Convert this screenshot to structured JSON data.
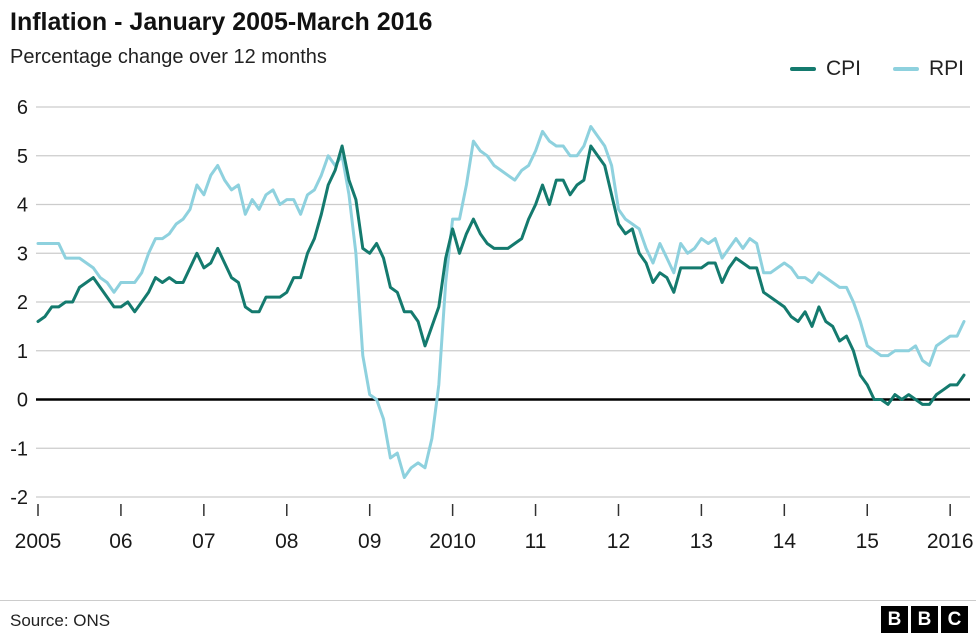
{
  "footer": {
    "source": "Source: ONS",
    "logo_letters": [
      "B",
      "B",
      "C"
    ]
  },
  "chart_data": {
    "type": "line",
    "title": "Inflation - January 2005-March 2016",
    "subtitle": "Percentage change over 12 months",
    "x_unit": "month",
    "x_range": [
      "2005-01",
      "2016-03"
    ],
    "x_tick_labels": [
      "2005",
      "06",
      "07",
      "08",
      "09",
      "2010",
      "11",
      "12",
      "13",
      "14",
      "15",
      "2016"
    ],
    "y_ticks": [
      6,
      5,
      4,
      3,
      2,
      1,
      0,
      -1,
      -2
    ],
    "ylim": [
      -2,
      6
    ],
    "grid": true,
    "legend_position": "top-right",
    "zero_line_color": "#000000",
    "grid_color": "#cccccc",
    "series": [
      {
        "name": "CPI",
        "color": "#147a6e",
        "values": [
          1.6,
          1.7,
          1.9,
          1.9,
          2.0,
          2.0,
          2.3,
          2.4,
          2.5,
          2.3,
          2.1,
          1.9,
          1.9,
          2.0,
          1.8,
          2.0,
          2.2,
          2.5,
          2.4,
          2.5,
          2.4,
          2.4,
          2.7,
          3.0,
          2.7,
          2.8,
          3.1,
          2.8,
          2.5,
          2.4,
          1.9,
          1.8,
          1.8,
          2.1,
          2.1,
          2.1,
          2.2,
          2.5,
          2.5,
          3.0,
          3.3,
          3.8,
          4.4,
          4.7,
          5.2,
          4.5,
          4.1,
          3.1,
          3.0,
          3.2,
          2.9,
          2.3,
          2.2,
          1.8,
          1.8,
          1.6,
          1.1,
          1.5,
          1.9,
          2.9,
          3.5,
          3.0,
          3.4,
          3.7,
          3.4,
          3.2,
          3.1,
          3.1,
          3.1,
          3.2,
          3.3,
          3.7,
          4.0,
          4.4,
          4.0,
          4.5,
          4.5,
          4.2,
          4.4,
          4.5,
          5.2,
          5.0,
          4.8,
          4.2,
          3.6,
          3.4,
          3.5,
          3.0,
          2.8,
          2.4,
          2.6,
          2.5,
          2.2,
          2.7,
          2.7,
          2.7,
          2.7,
          2.8,
          2.8,
          2.4,
          2.7,
          2.9,
          2.8,
          2.7,
          2.7,
          2.2,
          2.1,
          2.0,
          1.9,
          1.7,
          1.6,
          1.8,
          1.5,
          1.9,
          1.6,
          1.5,
          1.2,
          1.3,
          1.0,
          0.5,
          0.3,
          0.0,
          0.0,
          -0.1,
          0.1,
          0.0,
          0.1,
          0.0,
          -0.1,
          -0.1,
          0.1,
          0.2,
          0.3,
          0.3,
          0.5
        ]
      },
      {
        "name": "RPI",
        "color": "#8ed1de",
        "values": [
          3.2,
          3.2,
          3.2,
          3.2,
          2.9,
          2.9,
          2.9,
          2.8,
          2.7,
          2.5,
          2.4,
          2.2,
          2.4,
          2.4,
          2.4,
          2.6,
          3.0,
          3.3,
          3.3,
          3.4,
          3.6,
          3.7,
          3.9,
          4.4,
          4.2,
          4.6,
          4.8,
          4.5,
          4.3,
          4.4,
          3.8,
          4.1,
          3.9,
          4.2,
          4.3,
          4.0,
          4.1,
          4.1,
          3.8,
          4.2,
          4.3,
          4.6,
          5.0,
          4.8,
          5.0,
          4.2,
          3.0,
          0.9,
          0.1,
          0.0,
          -0.4,
          -1.2,
          -1.1,
          -1.6,
          -1.4,
          -1.3,
          -1.4,
          -0.8,
          0.3,
          2.4,
          3.7,
          3.7,
          4.4,
          5.3,
          5.1,
          5.0,
          4.8,
          4.7,
          4.6,
          4.5,
          4.7,
          4.8,
          5.1,
          5.5,
          5.3,
          5.2,
          5.2,
          5.0,
          5.0,
          5.2,
          5.6,
          5.4,
          5.2,
          4.8,
          3.9,
          3.7,
          3.6,
          3.5,
          3.1,
          2.8,
          3.2,
          2.9,
          2.6,
          3.2,
          3.0,
          3.1,
          3.3,
          3.2,
          3.3,
          2.9,
          3.1,
          3.3,
          3.1,
          3.3,
          3.2,
          2.6,
          2.6,
          2.7,
          2.8,
          2.7,
          2.5,
          2.5,
          2.4,
          2.6,
          2.5,
          2.4,
          2.3,
          2.3,
          2.0,
          1.6,
          1.1,
          1.0,
          0.9,
          0.9,
          1.0,
          1.0,
          1.0,
          1.1,
          0.8,
          0.7,
          1.1,
          1.2,
          1.3,
          1.3,
          1.6
        ]
      }
    ]
  }
}
